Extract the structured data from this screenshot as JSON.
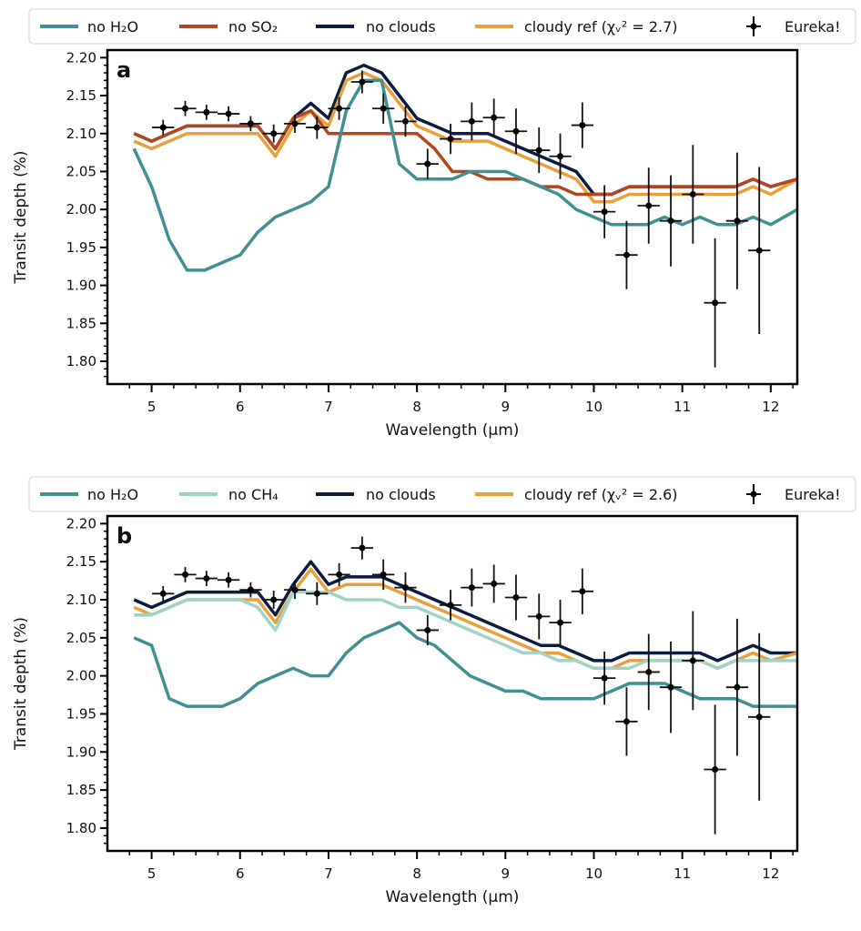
{
  "colors": {
    "no_h2o": "#3f8f93",
    "no_so2": "#b4461f",
    "no_clouds": "#0d1b3e",
    "cloudy_ref": "#e7a03c",
    "no_ch4": "#9fd3c4",
    "data": "#000000"
  },
  "chart_data": [
    {
      "type": "line",
      "panel_label": "a",
      "xlabel": "Wavelength (μm)",
      "ylabel": "Transit depth (%)",
      "xlim": [
        4.5,
        12.3
      ],
      "ylim": [
        1.77,
        2.21
      ],
      "xticks": [
        5,
        6,
        7,
        8,
        9,
        10,
        11,
        12
      ],
      "xtick_labels": [
        "5",
        "6",
        "7",
        "8",
        "9",
        "10",
        "11",
        "12"
      ],
      "yticks": [
        1.8,
        1.85,
        1.9,
        1.95,
        2.0,
        2.05,
        2.1,
        2.15,
        2.2
      ],
      "ytick_labels": [
        "1.80",
        "1.85",
        "1.90",
        "1.95",
        "2.00",
        "2.05",
        "2.10",
        "2.15",
        "2.20"
      ],
      "legend_position": "above plot",
      "legend": [
        {
          "label": "no H₂O",
          "color_key": "no_h2o",
          "marker": "line"
        },
        {
          "label": "no SO₂",
          "color_key": "no_so2",
          "marker": "line"
        },
        {
          "label": "no clouds",
          "color_key": "no_clouds",
          "marker": "line"
        },
        {
          "label": "cloudy ref (χᵥ² = 2.7)",
          "color_key": "cloudy_ref",
          "marker": "line"
        },
        {
          "label": "Eureka!",
          "color_key": "data",
          "marker": "errorbar"
        }
      ],
      "series": [
        {
          "name": "no clouds",
          "color_key": "no_clouds",
          "x": [
            4.8,
            5.0,
            5.2,
            5.4,
            5.6,
            5.8,
            6.0,
            6.2,
            6.4,
            6.6,
            6.8,
            7.0,
            7.2,
            7.4,
            7.6,
            7.8,
            8.0,
            8.2,
            8.4,
            8.6,
            8.8,
            9.0,
            9.2,
            9.4,
            9.6,
            9.8,
            10.0,
            10.2,
            10.4,
            10.6,
            10.8,
            11.0,
            11.2,
            11.4,
            11.6,
            11.8,
            12.0,
            12.3
          ],
          "y": [
            2.1,
            2.09,
            2.1,
            2.11,
            2.11,
            2.11,
            2.11,
            2.11,
            2.08,
            2.12,
            2.14,
            2.12,
            2.18,
            2.19,
            2.18,
            2.15,
            2.12,
            2.11,
            2.1,
            2.1,
            2.1,
            2.09,
            2.08,
            2.07,
            2.06,
            2.05,
            2.02,
            2.02,
            2.03,
            2.03,
            2.03,
            2.03,
            2.03,
            2.03,
            2.03,
            2.04,
            2.03,
            2.04
          ]
        },
        {
          "name": "cloudy ref",
          "color_key": "cloudy_ref",
          "x": [
            4.8,
            5.0,
            5.2,
            5.4,
            5.6,
            5.8,
            6.0,
            6.2,
            6.4,
            6.6,
            6.8,
            7.0,
            7.2,
            7.4,
            7.6,
            7.8,
            8.0,
            8.2,
            8.4,
            8.6,
            8.8,
            9.0,
            9.2,
            9.4,
            9.6,
            9.8,
            10.0,
            10.2,
            10.4,
            10.6,
            10.8,
            11.0,
            11.2,
            11.4,
            11.6,
            11.8,
            12.0,
            12.3
          ],
          "y": [
            2.09,
            2.08,
            2.09,
            2.1,
            2.1,
            2.1,
            2.1,
            2.1,
            2.07,
            2.11,
            2.13,
            2.11,
            2.17,
            2.18,
            2.17,
            2.14,
            2.11,
            2.1,
            2.09,
            2.09,
            2.09,
            2.08,
            2.07,
            2.06,
            2.05,
            2.04,
            2.01,
            2.01,
            2.02,
            2.02,
            2.02,
            2.02,
            2.02,
            2.02,
            2.02,
            2.03,
            2.02,
            2.04
          ]
        },
        {
          "name": "no SO₂",
          "color_key": "no_so2",
          "x": [
            4.8,
            5.0,
            5.2,
            5.4,
            5.6,
            5.8,
            6.0,
            6.2,
            6.4,
            6.6,
            6.8,
            7.0,
            7.2,
            7.4,
            7.6,
            7.8,
            8.0,
            8.2,
            8.4,
            8.6,
            8.8,
            9.0,
            9.2,
            9.4,
            9.6,
            9.8,
            10.0,
            10.2,
            10.4,
            10.6,
            10.8,
            11.0,
            11.2,
            11.4,
            11.6,
            11.8,
            12.0,
            12.3
          ],
          "y": [
            2.1,
            2.09,
            2.1,
            2.11,
            2.11,
            2.11,
            2.11,
            2.11,
            2.08,
            2.12,
            2.13,
            2.1,
            2.1,
            2.1,
            2.1,
            2.1,
            2.1,
            2.08,
            2.05,
            2.05,
            2.04,
            2.04,
            2.04,
            2.03,
            2.03,
            2.02,
            2.02,
            2.02,
            2.03,
            2.03,
            2.03,
            2.03,
            2.03,
            2.03,
            2.03,
            2.04,
            2.03,
            2.04
          ]
        },
        {
          "name": "no H₂O",
          "color_key": "no_h2o",
          "x": [
            4.8,
            5.0,
            5.2,
            5.4,
            5.6,
            5.8,
            6.0,
            6.2,
            6.4,
            6.6,
            6.8,
            7.0,
            7.2,
            7.4,
            7.6,
            7.8,
            8.0,
            8.2,
            8.4,
            8.6,
            8.8,
            9.0,
            9.2,
            9.4,
            9.6,
            9.8,
            10.0,
            10.2,
            10.4,
            10.6,
            10.8,
            11.0,
            11.2,
            11.4,
            11.6,
            11.8,
            12.0,
            12.3
          ],
          "y": [
            2.08,
            2.03,
            1.96,
            1.92,
            1.92,
            1.93,
            1.94,
            1.97,
            1.99,
            2.0,
            2.01,
            2.03,
            2.13,
            2.17,
            2.17,
            2.06,
            2.04,
            2.04,
            2.04,
            2.05,
            2.05,
            2.05,
            2.04,
            2.03,
            2.02,
            2.0,
            1.99,
            1.98,
            1.98,
            1.98,
            1.99,
            1.98,
            1.99,
            1.98,
            1.98,
            1.99,
            1.98,
            2.0
          ]
        }
      ],
      "errorbars": {
        "name": "Eureka!",
        "x": [
          5.13,
          5.38,
          5.62,
          5.87,
          6.12,
          6.38,
          6.62,
          6.87,
          7.12,
          7.38,
          7.62,
          7.87,
          8.12,
          8.38,
          8.62,
          8.87,
          9.12,
          9.38,
          9.62,
          9.87,
          10.12,
          10.37,
          10.62,
          10.87,
          11.12,
          11.37,
          11.62,
          11.87
        ],
        "y": [
          2.108,
          2.133,
          2.128,
          2.126,
          2.113,
          2.1,
          2.113,
          2.108,
          2.133,
          2.168,
          2.133,
          2.116,
          2.06,
          2.093,
          2.116,
          2.121,
          2.103,
          2.078,
          2.07,
          2.111,
          1.997,
          1.94,
          2.005,
          1.985,
          2.02,
          1.877,
          1.985,
          1.946
        ],
        "xerr": 0.125,
        "yerr": [
          0.01,
          0.01,
          0.01,
          0.01,
          0.01,
          0.012,
          0.012,
          0.015,
          0.015,
          0.015,
          0.02,
          0.02,
          0.02,
          0.02,
          0.025,
          0.025,
          0.03,
          0.03,
          0.03,
          0.03,
          0.035,
          0.045,
          0.05,
          0.06,
          0.065,
          0.085,
          0.09,
          0.11
        ]
      }
    },
    {
      "type": "line",
      "panel_label": "b",
      "xlabel": "Wavelength (μm)",
      "ylabel": "Transit depth (%)",
      "xlim": [
        4.5,
        12.3
      ],
      "ylim": [
        1.77,
        2.21
      ],
      "xticks": [
        5,
        6,
        7,
        8,
        9,
        10,
        11,
        12
      ],
      "xtick_labels": [
        "5",
        "6",
        "7",
        "8",
        "9",
        "10",
        "11",
        "12"
      ],
      "yticks": [
        1.8,
        1.85,
        1.9,
        1.95,
        2.0,
        2.05,
        2.1,
        2.15,
        2.2
      ],
      "ytick_labels": [
        "1.80",
        "1.85",
        "1.90",
        "1.95",
        "2.00",
        "2.05",
        "2.10",
        "2.15",
        "2.20"
      ],
      "legend_position": "above plot",
      "legend": [
        {
          "label": "no H₂O",
          "color_key": "no_h2o",
          "marker": "line"
        },
        {
          "label": "no CH₄",
          "color_key": "no_ch4",
          "marker": "line"
        },
        {
          "label": "no clouds",
          "color_key": "no_clouds",
          "marker": "line"
        },
        {
          "label": "cloudy ref (χᵥ² = 2.6)",
          "color_key": "cloudy_ref",
          "marker": "line"
        },
        {
          "label": "Eureka!",
          "color_key": "data",
          "marker": "errorbar"
        }
      ],
      "series": [
        {
          "name": "no clouds",
          "color_key": "no_clouds",
          "x": [
            4.8,
            5.0,
            5.2,
            5.4,
            5.6,
            5.8,
            6.0,
            6.2,
            6.4,
            6.6,
            6.8,
            7.0,
            7.2,
            7.4,
            7.6,
            7.8,
            8.0,
            8.2,
            8.4,
            8.6,
            8.8,
            9.0,
            9.2,
            9.4,
            9.6,
            9.8,
            10.0,
            10.2,
            10.4,
            10.6,
            10.8,
            11.0,
            11.2,
            11.4,
            11.6,
            11.8,
            12.0,
            12.3
          ],
          "y": [
            2.1,
            2.09,
            2.1,
            2.11,
            2.11,
            2.11,
            2.11,
            2.11,
            2.08,
            2.12,
            2.15,
            2.12,
            2.13,
            2.13,
            2.13,
            2.12,
            2.11,
            2.1,
            2.09,
            2.08,
            2.07,
            2.06,
            2.05,
            2.04,
            2.04,
            2.03,
            2.02,
            2.02,
            2.03,
            2.03,
            2.03,
            2.03,
            2.03,
            2.02,
            2.03,
            2.04,
            2.03,
            2.03
          ]
        },
        {
          "name": "cloudy ref",
          "color_key": "cloudy_ref",
          "x": [
            4.8,
            5.0,
            5.2,
            5.4,
            5.6,
            5.8,
            6.0,
            6.2,
            6.4,
            6.6,
            6.8,
            7.0,
            7.2,
            7.4,
            7.6,
            7.8,
            8.0,
            8.2,
            8.4,
            8.6,
            8.8,
            9.0,
            9.2,
            9.4,
            9.6,
            9.8,
            10.0,
            10.2,
            10.4,
            10.6,
            10.8,
            11.0,
            11.2,
            11.4,
            11.6,
            11.8,
            12.0,
            12.3
          ],
          "y": [
            2.09,
            2.08,
            2.09,
            2.1,
            2.1,
            2.1,
            2.1,
            2.1,
            2.07,
            2.11,
            2.14,
            2.11,
            2.12,
            2.12,
            2.12,
            2.11,
            2.1,
            2.09,
            2.08,
            2.07,
            2.06,
            2.05,
            2.04,
            2.03,
            2.03,
            2.02,
            2.01,
            2.01,
            2.02,
            2.02,
            2.02,
            2.02,
            2.02,
            2.01,
            2.02,
            2.03,
            2.02,
            2.03
          ]
        },
        {
          "name": "no CH₄",
          "color_key": "no_ch4",
          "x": [
            4.8,
            5.0,
            5.2,
            5.4,
            5.6,
            5.8,
            6.0,
            6.2,
            6.4,
            6.6,
            6.8,
            7.0,
            7.2,
            7.4,
            7.6,
            7.8,
            8.0,
            8.2,
            8.4,
            8.6,
            8.8,
            9.0,
            9.2,
            9.4,
            9.6,
            9.8,
            10.0,
            10.2,
            10.4,
            10.6,
            10.8,
            11.0,
            11.2,
            11.4,
            11.6,
            11.8,
            12.0,
            12.3
          ],
          "y": [
            2.08,
            2.08,
            2.09,
            2.1,
            2.1,
            2.1,
            2.1,
            2.09,
            2.06,
            2.11,
            2.11,
            2.11,
            2.1,
            2.1,
            2.1,
            2.09,
            2.09,
            2.08,
            2.07,
            2.06,
            2.05,
            2.04,
            2.03,
            2.03,
            2.02,
            2.02,
            2.01,
            2.01,
            2.01,
            2.02,
            2.02,
            2.02,
            2.02,
            2.01,
            2.02,
            2.02,
            2.02,
            2.02
          ]
        },
        {
          "name": "no H₂O",
          "color_key": "no_h2o",
          "x": [
            4.8,
            5.0,
            5.2,
            5.4,
            5.6,
            5.8,
            6.0,
            6.2,
            6.4,
            6.6,
            6.8,
            7.0,
            7.2,
            7.4,
            7.6,
            7.8,
            8.0,
            8.2,
            8.4,
            8.6,
            8.8,
            9.0,
            9.2,
            9.4,
            9.6,
            9.8,
            10.0,
            10.2,
            10.4,
            10.6,
            10.8,
            11.0,
            11.2,
            11.4,
            11.6,
            11.8,
            12.0,
            12.3
          ],
          "y": [
            2.05,
            2.04,
            1.97,
            1.96,
            1.96,
            1.96,
            1.97,
            1.99,
            2.0,
            2.01,
            2.0,
            2.0,
            2.03,
            2.05,
            2.06,
            2.07,
            2.05,
            2.04,
            2.02,
            2.0,
            1.99,
            1.98,
            1.98,
            1.97,
            1.97,
            1.97,
            1.97,
            1.98,
            1.99,
            1.99,
            1.99,
            1.98,
            1.97,
            1.97,
            1.97,
            1.96,
            1.96,
            1.96
          ]
        }
      ],
      "errorbars": {
        "name": "Eureka!",
        "x": [
          5.13,
          5.38,
          5.62,
          5.87,
          6.12,
          6.38,
          6.62,
          6.87,
          7.12,
          7.38,
          7.62,
          7.87,
          8.12,
          8.38,
          8.62,
          8.87,
          9.12,
          9.38,
          9.62,
          9.87,
          10.12,
          10.37,
          10.62,
          10.87,
          11.12,
          11.37,
          11.62,
          11.87
        ],
        "y": [
          2.108,
          2.133,
          2.128,
          2.126,
          2.113,
          2.1,
          2.113,
          2.108,
          2.133,
          2.168,
          2.133,
          2.116,
          2.06,
          2.093,
          2.116,
          2.121,
          2.103,
          2.078,
          2.07,
          2.111,
          1.997,
          1.94,
          2.005,
          1.985,
          2.02,
          1.877,
          1.985,
          1.946
        ],
        "xerr": 0.125,
        "yerr": [
          0.01,
          0.01,
          0.01,
          0.01,
          0.01,
          0.012,
          0.012,
          0.015,
          0.015,
          0.015,
          0.02,
          0.02,
          0.02,
          0.02,
          0.025,
          0.025,
          0.03,
          0.03,
          0.03,
          0.03,
          0.035,
          0.045,
          0.05,
          0.06,
          0.065,
          0.085,
          0.09,
          0.11
        ]
      }
    }
  ]
}
